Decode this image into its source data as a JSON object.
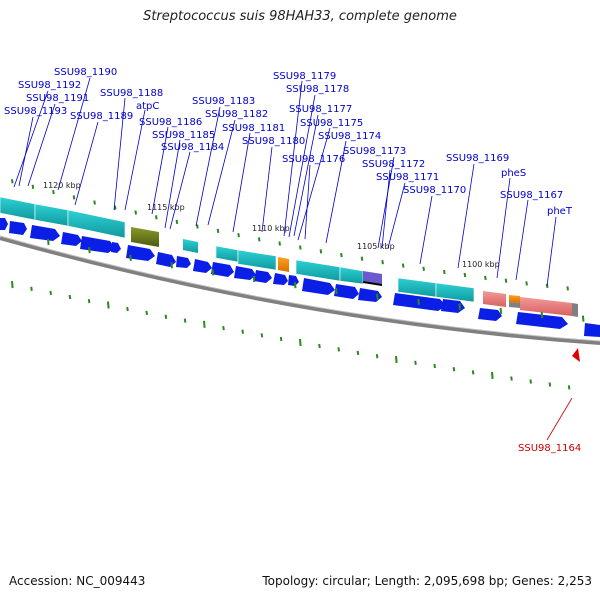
{
  "title": "Streptococcus suis 98HAH33, complete genome",
  "footer": {
    "accession": "Accession: NC_009443",
    "topology": "Topology: circular; Length: 2,095,698 bp; Genes: 2,253"
  },
  "colors": {
    "label": "#0000cc",
    "highlight_label": "#cc0000",
    "cds_arrow": "#0a1ee6",
    "cyan_feature": "#1fbcc0",
    "olive_feature": "#6b7a1a",
    "orange_feature": "#f08a00",
    "salmon_feature": "#ea7f7f",
    "purple_feature": "#6a5acd",
    "backbone": "#808080",
    "tick_mark": "#2a8a1e"
  },
  "kbp_ticks": [
    "1120 kbp",
    "1115 kbp",
    "1110 kbp",
    "1105 kbp",
    "1100 kbp"
  ],
  "gene_labels": [
    "SSU98_1190",
    "SSU98_1192",
    "SSU98_1191",
    "SSU98_1193",
    "SSU98_1188",
    "SSU98_1189",
    "atpC",
    "SSU98_1186",
    "SSU98_1185",
    "SSU98_1184",
    "SSU98_1183",
    "SSU98_1182",
    "SSU98_1181",
    "SSU98_1180",
    "SSU98_1179",
    "SSU98_1178",
    "SSU98_1177",
    "SSU98_1175",
    "SSU98_1174",
    "SSU98_1176",
    "SSU98_1173",
    "SSU98_1172",
    "SSU98_1171",
    "SSU98_1170",
    "SSU98_1169",
    "pheS",
    "SSU98_1167",
    "pheT"
  ],
  "highlight_gene": "SSU98_1164"
}
